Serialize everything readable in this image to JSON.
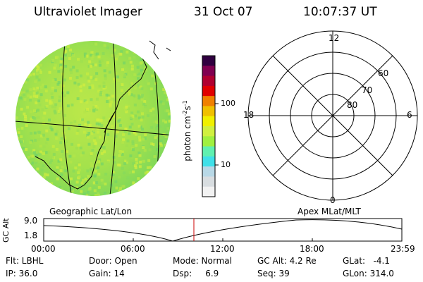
{
  "header": {
    "title": "Ultraviolet Imager",
    "date": "31 Oct 07",
    "time": "10:07:37 UT"
  },
  "colorbar": {
    "unit": "photon cm",
    "unit_exp1": "-2",
    "unit_mid": "s",
    "unit_exp2": "-1",
    "tick_100": "100",
    "tick_10": "10",
    "colors": [
      "#f2f2f2",
      "#d8dde0",
      "#b8d8e6",
      "#40e0e8",
      "#60f0b0",
      "#a0f040",
      "#d0f040",
      "#f0f000",
      "#f0c000",
      "#f08000",
      "#e00000",
      "#b00030",
      "#800050",
      "#300040"
    ]
  },
  "polar": {
    "mlt_top": "12",
    "mlt_left": "18",
    "mlt_right": "6",
    "mlt_bottom": "0",
    "lat_60": "60",
    "lat_70": "70",
    "lat_80": "80"
  },
  "labels": {
    "geo": "Geographic Lat/Lon",
    "apex": "Apex  MLat/MLT"
  },
  "orbit": {
    "axis_label": "GC Alt",
    "y_max": "9.0",
    "y_min": "1.8",
    "x_ticks": [
      "00:00",
      "06:00",
      "12:00",
      "18:00",
      "23:59"
    ],
    "current_marker_color": "#cc0000"
  },
  "status": {
    "filter": "Flt: LBHL",
    "ip": "IP: 36.0",
    "door": "Door: Open",
    "gain": "Gain: 14",
    "mode": "Mode: Normal",
    "dsp": "Dsp:     6.9",
    "gc_alt": "GC Alt: 4.2 Re",
    "seq": "Seq: 39",
    "glat": "GLat:   -4.1",
    "glon": "GLon: 314.0"
  }
}
